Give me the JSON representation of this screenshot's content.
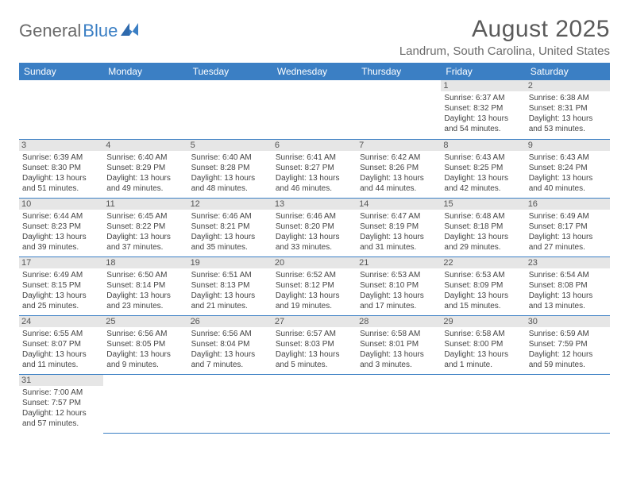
{
  "logo": {
    "text1": "General",
    "text2": "Blue"
  },
  "header": {
    "month_title": "August 2025",
    "location": "Landrum, South Carolina, United States"
  },
  "colors": {
    "accent": "#3b7fc4",
    "header_text": "#ffffff",
    "day_label_bg": "#e6e6e6",
    "body_text": "#444444",
    "title_text": "#5a5a5a"
  },
  "weekdays": [
    "Sunday",
    "Monday",
    "Tuesday",
    "Wednesday",
    "Thursday",
    "Friday",
    "Saturday"
  ],
  "weeks": [
    [
      null,
      null,
      null,
      null,
      null,
      {
        "n": "1",
        "sr": "Sunrise: 6:37 AM",
        "ss": "Sunset: 8:32 PM",
        "dl": "Daylight: 13 hours and 54 minutes."
      },
      {
        "n": "2",
        "sr": "Sunrise: 6:38 AM",
        "ss": "Sunset: 8:31 PM",
        "dl": "Daylight: 13 hours and 53 minutes."
      }
    ],
    [
      {
        "n": "3",
        "sr": "Sunrise: 6:39 AM",
        "ss": "Sunset: 8:30 PM",
        "dl": "Daylight: 13 hours and 51 minutes."
      },
      {
        "n": "4",
        "sr": "Sunrise: 6:40 AM",
        "ss": "Sunset: 8:29 PM",
        "dl": "Daylight: 13 hours and 49 minutes."
      },
      {
        "n": "5",
        "sr": "Sunrise: 6:40 AM",
        "ss": "Sunset: 8:28 PM",
        "dl": "Daylight: 13 hours and 48 minutes."
      },
      {
        "n": "6",
        "sr": "Sunrise: 6:41 AM",
        "ss": "Sunset: 8:27 PM",
        "dl": "Daylight: 13 hours and 46 minutes."
      },
      {
        "n": "7",
        "sr": "Sunrise: 6:42 AM",
        "ss": "Sunset: 8:26 PM",
        "dl": "Daylight: 13 hours and 44 minutes."
      },
      {
        "n": "8",
        "sr": "Sunrise: 6:43 AM",
        "ss": "Sunset: 8:25 PM",
        "dl": "Daylight: 13 hours and 42 minutes."
      },
      {
        "n": "9",
        "sr": "Sunrise: 6:43 AM",
        "ss": "Sunset: 8:24 PM",
        "dl": "Daylight: 13 hours and 40 minutes."
      }
    ],
    [
      {
        "n": "10",
        "sr": "Sunrise: 6:44 AM",
        "ss": "Sunset: 8:23 PM",
        "dl": "Daylight: 13 hours and 39 minutes."
      },
      {
        "n": "11",
        "sr": "Sunrise: 6:45 AM",
        "ss": "Sunset: 8:22 PM",
        "dl": "Daylight: 13 hours and 37 minutes."
      },
      {
        "n": "12",
        "sr": "Sunrise: 6:46 AM",
        "ss": "Sunset: 8:21 PM",
        "dl": "Daylight: 13 hours and 35 minutes."
      },
      {
        "n": "13",
        "sr": "Sunrise: 6:46 AM",
        "ss": "Sunset: 8:20 PM",
        "dl": "Daylight: 13 hours and 33 minutes."
      },
      {
        "n": "14",
        "sr": "Sunrise: 6:47 AM",
        "ss": "Sunset: 8:19 PM",
        "dl": "Daylight: 13 hours and 31 minutes."
      },
      {
        "n": "15",
        "sr": "Sunrise: 6:48 AM",
        "ss": "Sunset: 8:18 PM",
        "dl": "Daylight: 13 hours and 29 minutes."
      },
      {
        "n": "16",
        "sr": "Sunrise: 6:49 AM",
        "ss": "Sunset: 8:17 PM",
        "dl": "Daylight: 13 hours and 27 minutes."
      }
    ],
    [
      {
        "n": "17",
        "sr": "Sunrise: 6:49 AM",
        "ss": "Sunset: 8:15 PM",
        "dl": "Daylight: 13 hours and 25 minutes."
      },
      {
        "n": "18",
        "sr": "Sunrise: 6:50 AM",
        "ss": "Sunset: 8:14 PM",
        "dl": "Daylight: 13 hours and 23 minutes."
      },
      {
        "n": "19",
        "sr": "Sunrise: 6:51 AM",
        "ss": "Sunset: 8:13 PM",
        "dl": "Daylight: 13 hours and 21 minutes."
      },
      {
        "n": "20",
        "sr": "Sunrise: 6:52 AM",
        "ss": "Sunset: 8:12 PM",
        "dl": "Daylight: 13 hours and 19 minutes."
      },
      {
        "n": "21",
        "sr": "Sunrise: 6:53 AM",
        "ss": "Sunset: 8:10 PM",
        "dl": "Daylight: 13 hours and 17 minutes."
      },
      {
        "n": "22",
        "sr": "Sunrise: 6:53 AM",
        "ss": "Sunset: 8:09 PM",
        "dl": "Daylight: 13 hours and 15 minutes."
      },
      {
        "n": "23",
        "sr": "Sunrise: 6:54 AM",
        "ss": "Sunset: 8:08 PM",
        "dl": "Daylight: 13 hours and 13 minutes."
      }
    ],
    [
      {
        "n": "24",
        "sr": "Sunrise: 6:55 AM",
        "ss": "Sunset: 8:07 PM",
        "dl": "Daylight: 13 hours and 11 minutes."
      },
      {
        "n": "25",
        "sr": "Sunrise: 6:56 AM",
        "ss": "Sunset: 8:05 PM",
        "dl": "Daylight: 13 hours and 9 minutes."
      },
      {
        "n": "26",
        "sr": "Sunrise: 6:56 AM",
        "ss": "Sunset: 8:04 PM",
        "dl": "Daylight: 13 hours and 7 minutes."
      },
      {
        "n": "27",
        "sr": "Sunrise: 6:57 AM",
        "ss": "Sunset: 8:03 PM",
        "dl": "Daylight: 13 hours and 5 minutes."
      },
      {
        "n": "28",
        "sr": "Sunrise: 6:58 AM",
        "ss": "Sunset: 8:01 PM",
        "dl": "Daylight: 13 hours and 3 minutes."
      },
      {
        "n": "29",
        "sr": "Sunrise: 6:58 AM",
        "ss": "Sunset: 8:00 PM",
        "dl": "Daylight: 13 hours and 1 minute."
      },
      {
        "n": "30",
        "sr": "Sunrise: 6:59 AM",
        "ss": "Sunset: 7:59 PM",
        "dl": "Daylight: 12 hours and 59 minutes."
      }
    ],
    [
      {
        "n": "31",
        "sr": "Sunrise: 7:00 AM",
        "ss": "Sunset: 7:57 PM",
        "dl": "Daylight: 12 hours and 57 minutes."
      },
      null,
      null,
      null,
      null,
      null,
      null
    ]
  ]
}
